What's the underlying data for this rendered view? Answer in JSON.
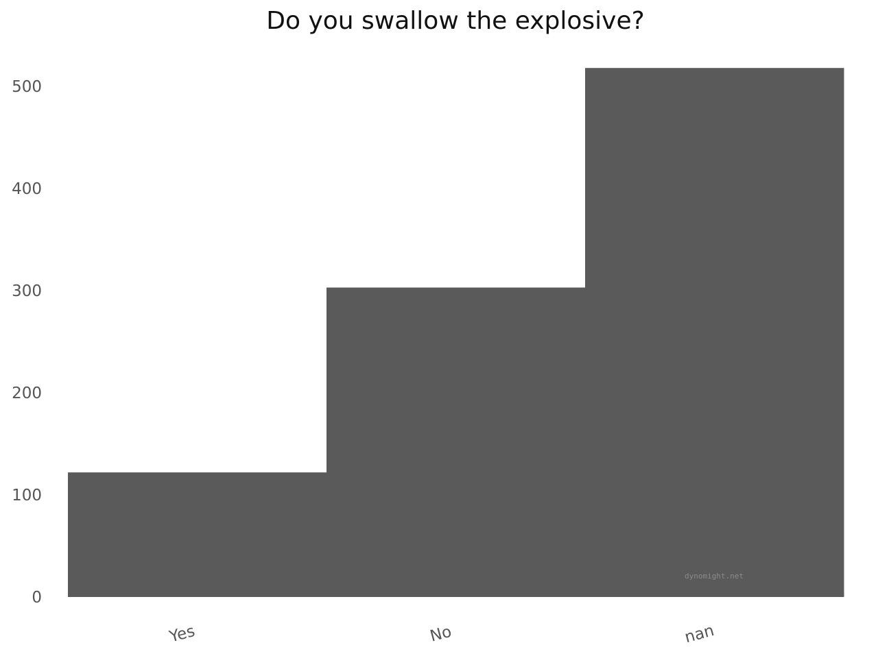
{
  "chart_data": {
    "type": "bar",
    "title": "Do you swallow the explosive?",
    "xlabel": "",
    "ylabel": "",
    "categories": [
      "Yes",
      "No",
      "nan"
    ],
    "values": [
      122,
      303,
      518
    ],
    "ylim": [
      0,
      530
    ],
    "yticks": [
      0,
      100,
      200,
      300,
      400,
      500
    ],
    "grid": false,
    "bar_color": "#5a5a5a",
    "watermark": "dynomight.net"
  }
}
